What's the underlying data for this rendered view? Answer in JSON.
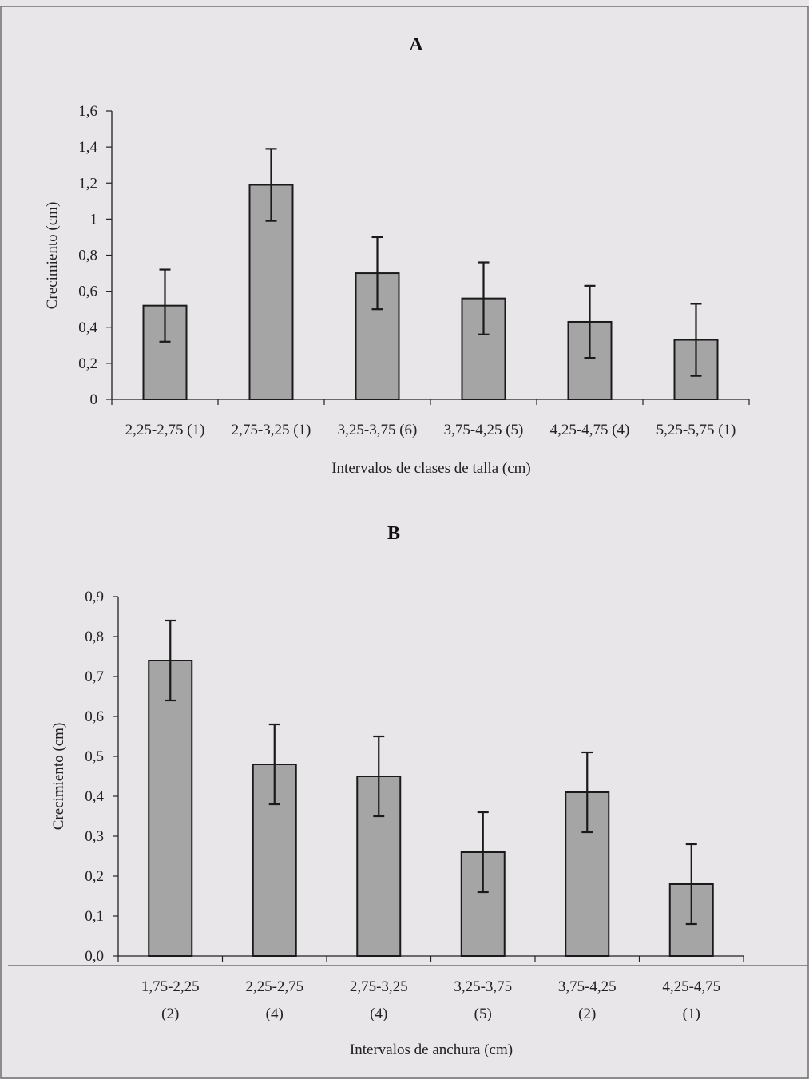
{
  "chart_data": [
    {
      "type": "bar",
      "title": "A",
      "xlabel": "Intervalos de clases de talla (cm)",
      "ylabel": "Crecimiento (cm)",
      "ylim": [
        0,
        1.6
      ],
      "yticks": [
        "0",
        "0,2",
        "0,4",
        "0,6",
        "0,8",
        "1",
        "1,2",
        "1,4",
        "1,6"
      ],
      "categories": [
        "2,25-2,75 (1)",
        "2,75-3,25 (1)",
        "3,25-3,75 (6)",
        "3,75-4,25 (5)",
        "4,25-4,75 (4)",
        "5,25-5,75 (1)"
      ],
      "values": [
        0.52,
        1.19,
        0.7,
        0.56,
        0.43,
        0.33
      ],
      "errors": [
        0.2,
        0.2,
        0.2,
        0.2,
        0.2,
        0.2
      ],
      "grid": false
    },
    {
      "type": "bar",
      "title": "B",
      "xlabel": "Intervalos de anchura (cm)",
      "ylabel": "Crecimiento (cm)",
      "ylim": [
        0,
        0.9
      ],
      "yticks": [
        "0,0",
        "0,1",
        "0,2",
        "0,3",
        "0,4",
        "0,5",
        "0,6",
        "0,7",
        "0,8",
        "0,9"
      ],
      "categories": [
        [
          "1,75-2,25",
          "(2)"
        ],
        [
          "2,25-2,75",
          "(4)"
        ],
        [
          "2,75-3,25",
          "(4)"
        ],
        [
          "3,25-3,75",
          "(5)"
        ],
        [
          "3,75-4,25",
          "(2)"
        ],
        [
          "4,25-4,75",
          "(1)"
        ]
      ],
      "values": [
        0.74,
        0.48,
        0.45,
        0.26,
        0.41,
        0.18
      ],
      "errors": [
        0.1,
        0.1,
        0.1,
        0.1,
        0.1,
        0.1
      ],
      "grid": false
    }
  ],
  "colors": {
    "bar_fill": "#a5a5a5",
    "bar_stroke": "#1a1a1a",
    "background": "#e8e6e9"
  }
}
